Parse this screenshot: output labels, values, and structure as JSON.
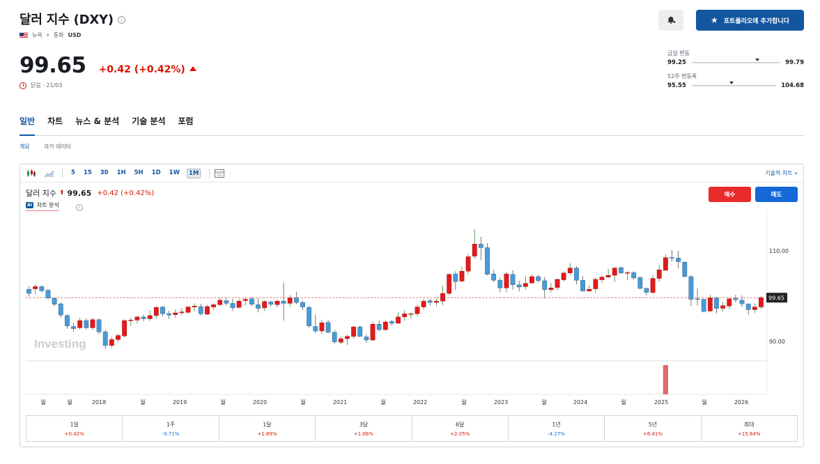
{
  "header": {
    "title": "달러 지수 (DXY)",
    "exchange": "뉴욕",
    "currency_label": "통화",
    "currency": "USD",
    "price": "99.65",
    "change": "+0.42 (+0.42%)",
    "status": "닫음 · 21/03"
  },
  "actions": {
    "portfolio_label": "포트폴리오에 추가합니다"
  },
  "ranges": {
    "day": {
      "label": "금일 변동",
      "low": "99.25",
      "high": "99.79",
      "position": 0.72
    },
    "year": {
      "label": "52주 변동폭",
      "low": "95.55",
      "high": "104.68",
      "position": 0.45
    }
  },
  "tabs": [
    "일반",
    "차트",
    "뉴스 & 분석",
    "기술 분석",
    "포럼"
  ],
  "subtabs": [
    "개요",
    "과거 데이터"
  ],
  "toolbar": {
    "timeframes": [
      "5",
      "15",
      "30",
      "1H",
      "5H",
      "1D",
      "1W",
      "1M"
    ],
    "active_timeframe": "1M",
    "tech_chart_link": "기술적 차트 »"
  },
  "legend": {
    "name": "달러 지수",
    "price": "99.65",
    "change": "+0.42 (+0.42%)",
    "ai_label": "차트 분석",
    "ai_chip": "AI"
  },
  "trade": {
    "buy": "매수",
    "sell": "매도"
  },
  "watermark": "Investing",
  "colors": {
    "up": "#e01b1b",
    "down": "#4a9ad4",
    "accent": "#1256a0"
  },
  "chart_data": {
    "type": "candlestick",
    "interval": "monthly",
    "y_ticks": [
      "110.00",
      "90.00"
    ],
    "current_price_label": "99.65",
    "x_labels": [
      "월",
      "월",
      "2018",
      "월",
      "2019",
      "월",
      "2020",
      "월",
      "2021",
      "월",
      "2022",
      "월",
      "2023",
      "월",
      "2024",
      "월",
      "2025",
      "월",
      "2026"
    ],
    "candles": [
      [
        101.5,
        100.6
      ],
      [
        101.6,
        102.1
      ],
      [
        102.1,
        101.2
      ],
      [
        101.3,
        99.6
      ],
      [
        99.5,
        98.2
      ],
      [
        98.3,
        95.8
      ],
      [
        95.7,
        93.4
      ],
      [
        93.3,
        92.8
      ],
      [
        93.0,
        94.6
      ],
      [
        94.6,
        93.0
      ],
      [
        93.0,
        94.8
      ],
      [
        94.8,
        92.1
      ],
      [
        92.1,
        89.1
      ],
      [
        89.1,
        90.4
      ],
      [
        90.4,
        91.3
      ],
      [
        91.2,
        94.6
      ],
      [
        94.6,
        94.7
      ],
      [
        94.7,
        95.4
      ],
      [
        95.4,
        95.0
      ],
      [
        95.0,
        95.7
      ],
      [
        95.7,
        97.5
      ],
      [
        97.6,
        96.1
      ],
      [
        96.1,
        95.8
      ],
      [
        95.9,
        96.3
      ],
      [
        96.3,
        96.5
      ],
      [
        96.4,
        97.6
      ],
      [
        97.6,
        97.8
      ],
      [
        97.7,
        96.1
      ],
      [
        96.0,
        97.7
      ],
      [
        97.6,
        98.1
      ],
      [
        98.1,
        99.1
      ],
      [
        99.0,
        98.4
      ],
      [
        98.4,
        97.4
      ],
      [
        97.5,
        98.9
      ],
      [
        99.0,
        99.3
      ],
      [
        99.4,
        98.2
      ],
      [
        98.1,
        97.3
      ],
      [
        97.4,
        98.8
      ],
      [
        98.7,
        98.2
      ],
      [
        98.1,
        98.9
      ],
      [
        98.9,
        98.4
      ],
      [
        98.4,
        99.6
      ],
      [
        99.6,
        98.6
      ],
      [
        98.6,
        97.6
      ],
      [
        97.5,
        93.4
      ],
      [
        93.3,
        92.3
      ],
      [
        92.3,
        94.1
      ],
      [
        94.2,
        92.0
      ],
      [
        92.0,
        89.9
      ],
      [
        89.8,
        90.6
      ],
      [
        90.6,
        91.1
      ],
      [
        91.1,
        93.2
      ],
      [
        93.2,
        91.1
      ],
      [
        91.0,
        90.3
      ],
      [
        90.3,
        93.8
      ],
      [
        93.8,
        92.6
      ],
      [
        92.6,
        94.3
      ],
      [
        94.4,
        94.0
      ],
      [
        94.0,
        95.4
      ],
      [
        95.4,
        96.1
      ],
      [
        96.1,
        96.1
      ],
      [
        96.1,
        97.6
      ],
      [
        97.6,
        98.9
      ],
      [
        99.0,
        98.6
      ],
      [
        98.6,
        98.9
      ],
      [
        98.9,
        100.6
      ],
      [
        100.6,
        104.8
      ],
      [
        104.9,
        103.2
      ],
      [
        103.3,
        105.5
      ],
      [
        105.5,
        108.7
      ],
      [
        108.8,
        111.5
      ],
      [
        111.5,
        110.7
      ],
      [
        110.7,
        104.8
      ],
      [
        104.9,
        103.5
      ],
      [
        103.5,
        101.8
      ],
      [
        101.8,
        104.9
      ],
      [
        104.8,
        102.5
      ],
      [
        102.5,
        102.0
      ],
      [
        102.1,
        102.8
      ],
      [
        102.9,
        104.3
      ],
      [
        104.3,
        103.4
      ],
      [
        103.4,
        101.4
      ],
      [
        101.4,
        101.8
      ],
      [
        101.9,
        103.7
      ],
      [
        103.6,
        105.1
      ],
      [
        105.1,
        106.2
      ],
      [
        106.2,
        103.5
      ],
      [
        103.5,
        101.1
      ],
      [
        101.1,
        101.5
      ],
      [
        101.6,
        103.7
      ],
      [
        103.6,
        104.2
      ],
      [
        104.2,
        104.6
      ],
      [
        104.6,
        106.2
      ],
      [
        106.3,
        105.1
      ],
      [
        105.1,
        105.2
      ],
      [
        105.2,
        104.0
      ],
      [
        104.1,
        101.7
      ],
      [
        101.7,
        100.8
      ],
      [
        100.8,
        103.9
      ],
      [
        103.9,
        105.8
      ],
      [
        105.7,
        108.5
      ],
      [
        108.5,
        108.4
      ],
      [
        108.4,
        107.6
      ],
      [
        107.5,
        104.3
      ],
      [
        104.3,
        99.3
      ],
      [
        99.4,
        99.3
      ],
      [
        99.3,
        96.6
      ],
      [
        96.7,
        99.6
      ],
      [
        99.6,
        97.3
      ],
      [
        97.3,
        97.9
      ],
      [
        97.8,
        99.4
      ],
      [
        99.5,
        99.2
      ],
      [
        99.1,
        98.3
      ],
      [
        98.3,
        97.0
      ],
      [
        97.0,
        97.6
      ],
      [
        97.6,
        99.65
      ]
    ],
    "candle_wicks": [
      [
        99.9,
        102.2
      ],
      [
        100.4,
        102.6
      ],
      [
        100.8,
        102.3
      ],
      [
        99.2,
        101.6
      ],
      [
        97.8,
        99.7
      ],
      [
        95.2,
        98.6
      ],
      [
        92.8,
        96.0
      ],
      [
        92.1,
        94.1
      ],
      [
        92.6,
        95.2
      ],
      [
        92.6,
        95.1
      ],
      [
        92.5,
        95.2
      ],
      [
        91.6,
        95.0
      ],
      [
        88.3,
        92.5
      ],
      [
        88.6,
        91.0
      ],
      [
        89.9,
        91.7
      ],
      [
        90.9,
        94.9
      ],
      [
        93.4,
        95.3
      ],
      [
        93.9,
        95.6
      ],
      [
        94.4,
        95.9
      ],
      [
        94.5,
        96.8
      ],
      [
        95.1,
        97.8
      ],
      [
        95.5,
        97.8
      ],
      [
        95.0,
        96.8
      ],
      [
        95.3,
        97.0
      ],
      [
        95.8,
        97.4
      ],
      [
        96.1,
        97.9
      ],
      [
        96.6,
        98.4
      ],
      [
        95.7,
        98.3
      ],
      [
        95.8,
        98.1
      ],
      [
        97.0,
        98.4
      ],
      [
        97.7,
        99.6
      ],
      [
        97.9,
        99.6
      ],
      [
        96.7,
        99.4
      ],
      [
        97.3,
        99.3
      ],
      [
        97.9,
        99.7
      ],
      [
        97.8,
        99.8
      ],
      [
        96.4,
        99.5
      ],
      [
        96.7,
        99.1
      ],
      [
        97.7,
        99.0
      ],
      [
        97.5,
        99.2
      ],
      [
        94.6,
        102.9
      ],
      [
        97.6,
        100.2
      ],
      [
        98.2,
        101.0
      ],
      [
        96.9,
        99.0
      ],
      [
        93.0,
        97.9
      ],
      [
        91.8,
        95.9
      ],
      [
        91.6,
        94.8
      ],
      [
        91.8,
        94.7
      ],
      [
        89.5,
        92.5
      ],
      [
        89.4,
        91.1
      ],
      [
        89.2,
        91.5
      ],
      [
        90.6,
        93.4
      ],
      [
        90.9,
        93.5
      ],
      [
        89.7,
        91.6
      ],
      [
        90.1,
        94.4
      ],
      [
        92.2,
        94.6
      ],
      [
        92.3,
        94.6
      ],
      [
        93.6,
        94.7
      ],
      [
        93.9,
        96.4
      ],
      [
        94.6,
        96.9
      ],
      [
        95.1,
        96.4
      ],
      [
        95.5,
        98.1
      ],
      [
        97.0,
        99.4
      ],
      [
        97.9,
        99.4
      ],
      [
        97.8,
        99.6
      ],
      [
        98.0,
        102.3
      ],
      [
        100.2,
        105.0
      ],
      [
        101.4,
        105.5
      ],
      [
        103.1,
        106.5
      ],
      [
        104.8,
        109.3
      ],
      [
        108.2,
        114.8
      ],
      [
        107.9,
        113.1
      ],
      [
        104.6,
        111.7
      ],
      [
        103.1,
        105.8
      ],
      [
        100.8,
        104.1
      ],
      [
        100.8,
        105.4
      ],
      [
        101.4,
        105.7
      ],
      [
        101.0,
        103.4
      ],
      [
        101.4,
        104.4
      ],
      [
        102.8,
        104.8
      ],
      [
        103.0,
        104.7
      ],
      [
        99.5,
        104.2
      ],
      [
        100.8,
        102.9
      ],
      [
        101.2,
        103.8
      ],
      [
        103.2,
        105.5
      ],
      [
        104.6,
        107.3
      ],
      [
        102.6,
        106.6
      ],
      [
        101.0,
        104.4
      ],
      [
        101.2,
        102.4
      ],
      [
        100.7,
        104.1
      ],
      [
        102.9,
        104.6
      ],
      [
        103.9,
        106.0
      ],
      [
        103.1,
        106.5
      ],
      [
        104.9,
        106.5
      ],
      [
        103.5,
        105.5
      ],
      [
        103.6,
        105.5
      ],
      [
        101.5,
        104.3
      ],
      [
        100.2,
        101.9
      ],
      [
        100.5,
        104.6
      ],
      [
        103.2,
        106.9
      ],
      [
        105.6,
        109.3
      ],
      [
        107.6,
        110.2
      ],
      [
        106.1,
        110.0
      ],
      [
        104.2,
        107.7
      ],
      [
        97.8,
        104.6
      ],
      [
        97.9,
        101.7
      ],
      [
        96.4,
        99.4
      ],
      [
        96.4,
        100.3
      ],
      [
        96.2,
        99.8
      ],
      [
        96.6,
        98.7
      ],
      [
        97.2,
        99.6
      ],
      [
        98.6,
        100.3
      ],
      [
        97.6,
        100.2
      ],
      [
        95.8,
        98.3
      ],
      [
        96.3,
        98.4
      ],
      [
        97.2,
        100.0
      ]
    ],
    "volume_bar": {
      "index": 100
    }
  },
  "performance": [
    {
      "label": "1일",
      "value": "+0.42%",
      "dir": "pos"
    },
    {
      "label": "1주",
      "value": "-0.71%",
      "dir": "neg"
    },
    {
      "label": "1달",
      "value": "+1.89%",
      "dir": "pos"
    },
    {
      "label": "3달",
      "value": "+1.06%",
      "dir": "pos"
    },
    {
      "label": "6달",
      "value": "+2.05%",
      "dir": "pos"
    },
    {
      "label": "1년",
      "value": "-4.27%",
      "dir": "neg"
    },
    {
      "label": "5년",
      "value": "+8.41%",
      "dir": "pos"
    },
    {
      "label": "최대",
      "value": "+15.64%",
      "dir": "pos"
    }
  ]
}
